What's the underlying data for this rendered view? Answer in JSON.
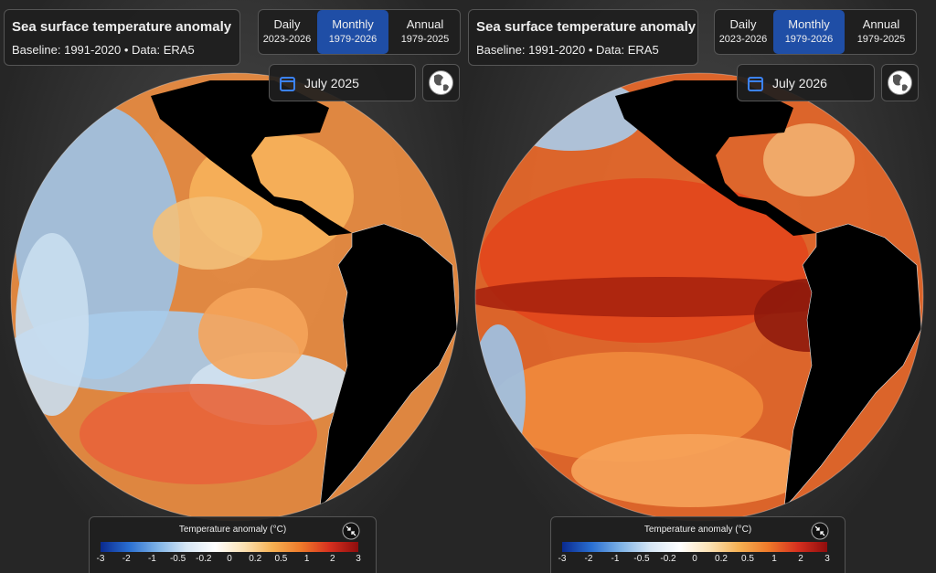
{
  "panels": [
    {
      "title": "Sea surface temperature anomaly",
      "subtitle": "Baseline: 1991-2020 • Data: ERA5",
      "modes": [
        {
          "label": "Daily",
          "range": "2023-2026"
        },
        {
          "label": "Monthly",
          "range": "1979-2026"
        },
        {
          "label": "Annual",
          "range": "1979-2025"
        }
      ],
      "date": "July 2025",
      "legend": {
        "title": "Temperature anomaly (°C)",
        "ticks": [
          "-3",
          "-2",
          "-1",
          "-0.5",
          "-0.2",
          "0",
          "0.2",
          "0.5",
          "1",
          "2",
          "3"
        ]
      }
    },
    {
      "title": "Sea surface temperature anomaly",
      "subtitle": "Baseline: 1991-2020 • Data: ERA5",
      "modes": [
        {
          "label": "Daily",
          "range": "2023-2026"
        },
        {
          "label": "Monthly",
          "range": "1979-2026"
        },
        {
          "label": "Annual",
          "range": "1979-2025"
        }
      ],
      "date": "July 2026",
      "legend": {
        "title": "Temperature anomaly (°C)",
        "ticks": [
          "-3",
          "-2",
          "-1",
          "-0.5",
          "-0.2",
          "0",
          "0.2",
          "0.5",
          "1",
          "2",
          "3"
        ]
      }
    }
  ]
}
